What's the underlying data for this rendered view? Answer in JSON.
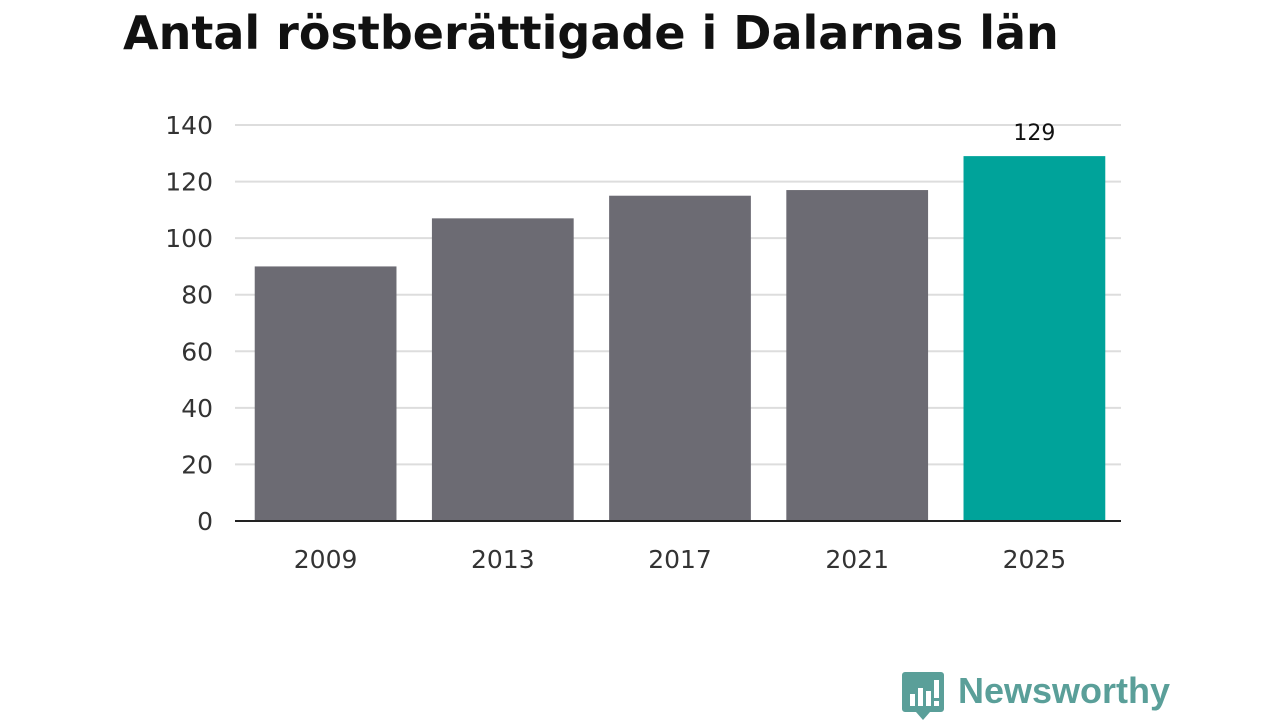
{
  "title": "Antal röstberättigade i Dalarnas län",
  "brand": {
    "name": "Newsworthy",
    "icon": "newsworthy-logo-icon",
    "color": "#5a9f99"
  },
  "chart_data": {
    "type": "bar",
    "title": "Antal röstberättigade i Dalarnas län",
    "xlabel": "",
    "ylabel": "",
    "categories": [
      "2009",
      "2013",
      "2017",
      "2021",
      "2025"
    ],
    "values": [
      90,
      107,
      115,
      117,
      129
    ],
    "ylim": [
      0,
      140
    ],
    "yticks": [
      "0",
      "20",
      "40",
      "60",
      "80",
      "100",
      "120",
      "140"
    ],
    "data_labels": [
      {
        "category": "2025",
        "text": "129"
      }
    ],
    "highlight_category": "2025",
    "colors": {
      "bar": "#6c6b73",
      "highlight": "#00a39a",
      "grid": "#dddddd",
      "axis": "#222222",
      "text": "#333333"
    },
    "grid": true,
    "legend": "none"
  }
}
